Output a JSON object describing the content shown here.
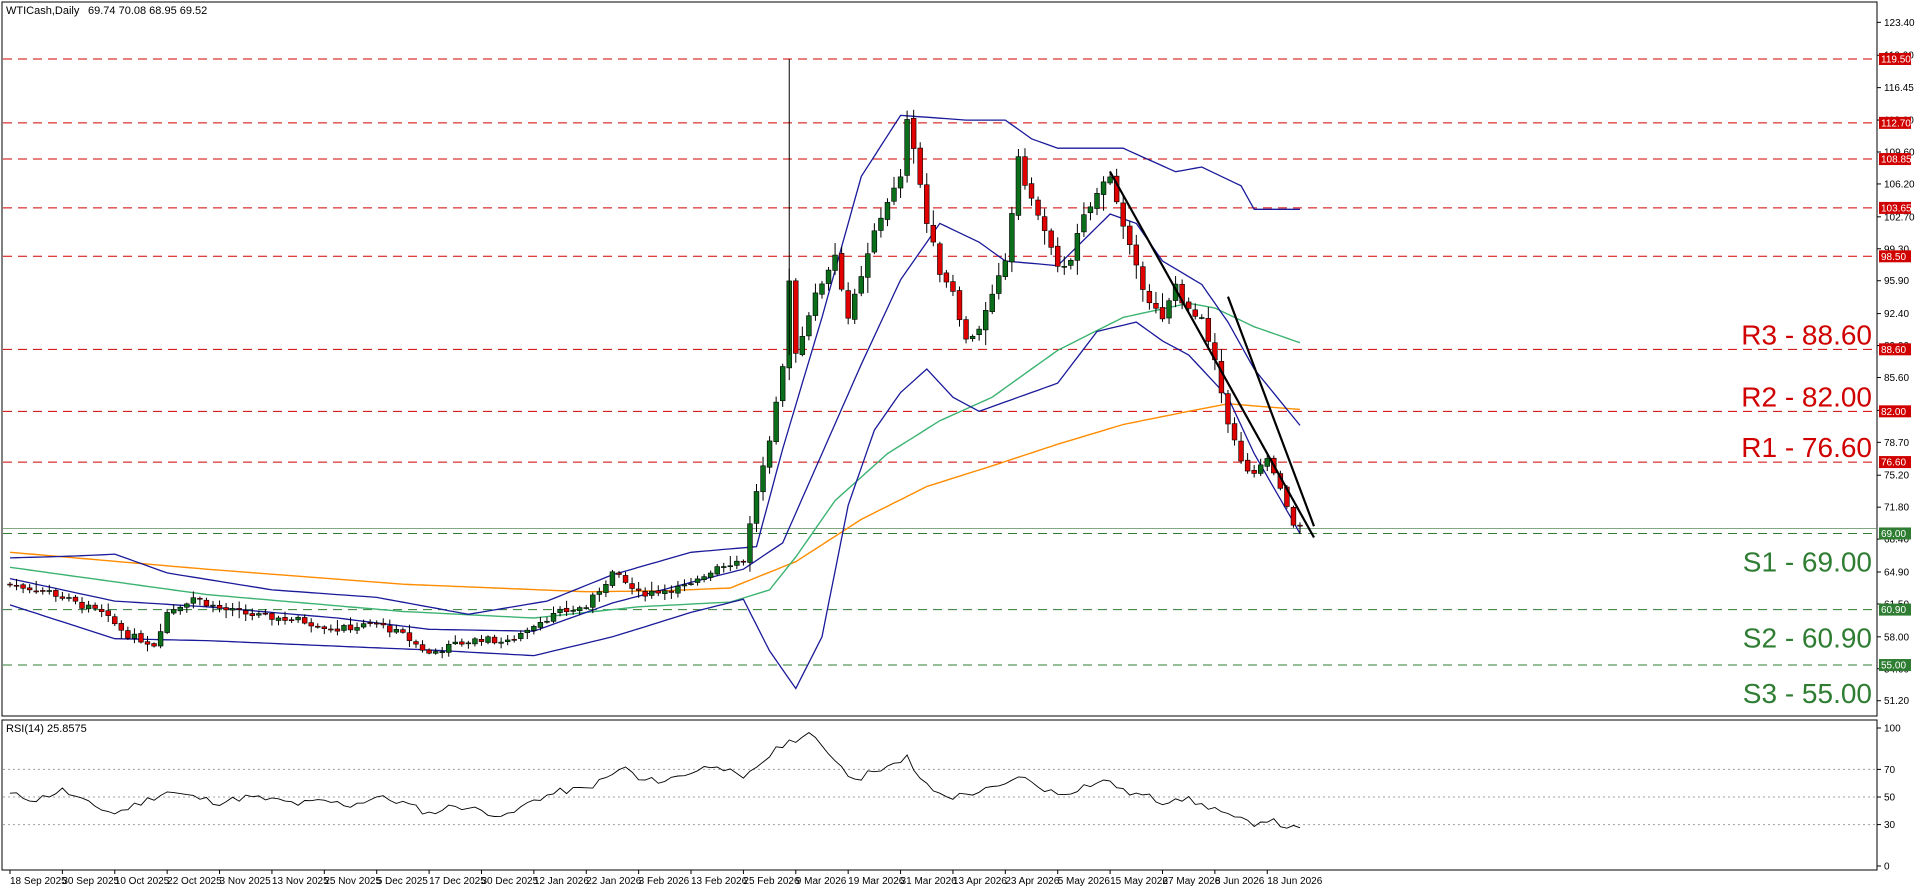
{
  "header": {
    "symbol_label": "WTICash,Daily",
    "ohlc_values": "69.74 70.08 68.95 69.52"
  },
  "rsi_header": {
    "label": "RSI(14) 25.8575"
  },
  "colors": {
    "bullish_candle": "#0b6e1a",
    "bearish_candle": "#e00000",
    "bollinger": "#1a1a9a",
    "ma_green": "#3cb371",
    "ma_orange": "#ff8c00",
    "resistance_line": "#d00000",
    "support_line": "#2e7d32",
    "trendline": "#000000",
    "rsi_line": "#000000"
  },
  "levels": {
    "resistance": [
      {
        "price": 119.5,
        "tag": "119.50"
      },
      {
        "price": 112.7,
        "tag": "112.70"
      },
      {
        "price": 108.85,
        "tag": "108.85"
      },
      {
        "price": 103.65,
        "tag": "103.65"
      },
      {
        "price": 98.5,
        "tag": "98.50"
      },
      {
        "price": 88.6,
        "tag": "88.60",
        "label": "R3 - 88.60"
      },
      {
        "price": 82.0,
        "tag": "82.00",
        "label": "R2 - 82.00"
      },
      {
        "price": 76.6,
        "tag": "76.60",
        "label": "R1 - 76.60"
      }
    ],
    "support": [
      {
        "price": 69.0,
        "tag": "69.00",
        "label": "S1 - 69.00"
      },
      {
        "price": 60.9,
        "tag": "60.90",
        "label": "S2 - 60.90"
      },
      {
        "price": 55.0,
        "tag": "55.00",
        "label": "S3 - 55.00"
      }
    ]
  },
  "chart_data": {
    "type": "candlestick",
    "price_axis": {
      "ylim": [
        50.0,
        124.5
      ],
      "ticks": [
        123.4,
        119.9,
        116.45,
        113.0,
        109.6,
        106.2,
        102.7,
        99.3,
        95.9,
        92.4,
        89.0,
        85.6,
        82.1,
        78.7,
        75.2,
        71.8,
        68.4,
        64.9,
        61.5,
        58.0,
        54.6,
        51.2
      ]
    },
    "rsi_axis": {
      "ylim": [
        0,
        100
      ],
      "ticks": [
        100,
        70,
        50,
        30,
        0
      ]
    },
    "x_ticks": [
      {
        "label": "18 Sep 2025",
        "i": 0
      },
      {
        "label": "30 Sep 2025",
        "i": 8
      },
      {
        "label": "10 Oct 2025",
        "i": 16
      },
      {
        "label": "22 Oct 2025",
        "i": 24
      },
      {
        "label": "3 Nov 2025",
        "i": 32
      },
      {
        "label": "13 Nov 2025",
        "i": 40
      },
      {
        "label": "25 Nov 2025",
        "i": 48
      },
      {
        "label": "5 Dec 2025",
        "i": 56
      },
      {
        "label": "17 Dec 2025",
        "i": 64
      },
      {
        "label": "30 Dec 2025",
        "i": 72
      },
      {
        "label": "12 Jan 2026",
        "i": 80
      },
      {
        "label": "22 Jan 2026",
        "i": 88
      },
      {
        "label": "3 Feb 2026",
        "i": 96
      },
      {
        "label": "13 Feb 2026",
        "i": 104
      },
      {
        "label": "25 Feb 2026",
        "i": 112
      },
      {
        "label": "9 Mar 2026",
        "i": 120
      },
      {
        "label": "19 Mar 2026",
        "i": 128
      },
      {
        "label": "31 Mar 2026",
        "i": 136
      },
      {
        "label": "13 Apr 2026",
        "i": 144
      },
      {
        "label": "23 Apr 2026",
        "i": 152
      },
      {
        "label": "5 May 2026",
        "i": 160
      },
      {
        "label": "15 May 2026",
        "i": 168
      },
      {
        "label": "27 May 2026",
        "i": 176
      },
      {
        "label": "8 Jun 2026",
        "i": 184
      },
      {
        "label": "18 Jun 2026",
        "i": 192
      }
    ],
    "bar_count": 200,
    "close_anchors": [
      [
        0,
        63.6
      ],
      [
        6,
        62.8
      ],
      [
        10,
        61.6
      ],
      [
        14,
        60.5
      ],
      [
        18,
        58.2
      ],
      [
        22,
        57.2
      ],
      [
        24,
        60.6
      ],
      [
        28,
        62.2
      ],
      [
        32,
        61.0
      ],
      [
        38,
        60.2
      ],
      [
        44,
        59.8
      ],
      [
        50,
        58.8
      ],
      [
        56,
        59.4
      ],
      [
        60,
        58.2
      ],
      [
        64,
        56.2
      ],
      [
        68,
        57.2
      ],
      [
        72,
        57.8
      ],
      [
        76,
        57.4
      ],
      [
        80,
        59.4
      ],
      [
        84,
        60.6
      ],
      [
        88,
        61.2
      ],
      [
        92,
        64.8
      ],
      [
        96,
        62.6
      ],
      [
        100,
        63.0
      ],
      [
        104,
        63.4
      ],
      [
        108,
        65.6
      ],
      [
        112,
        66.2
      ],
      [
        114,
        73.6
      ],
      [
        116,
        78.4
      ],
      [
        118,
        86.6
      ],
      [
        119,
        96.3
      ],
      [
        120,
        88.2
      ],
      [
        122,
        92.5
      ],
      [
        124,
        95.8
      ],
      [
        126,
        98.8
      ],
      [
        128,
        92.0
      ],
      [
        130,
        96.0
      ],
      [
        132,
        101.0
      ],
      [
        134,
        104.5
      ],
      [
        136,
        106.5
      ],
      [
        137,
        113.5
      ],
      [
        138,
        110.5
      ],
      [
        140,
        102.0
      ],
      [
        142,
        97.0
      ],
      [
        144,
        95.0
      ],
      [
        146,
        89.5
      ],
      [
        148,
        91.0
      ],
      [
        150,
        94.0
      ],
      [
        152,
        98.0
      ],
      [
        154,
        108.5
      ],
      [
        156,
        104.5
      ],
      [
        158,
        101.0
      ],
      [
        160,
        97.0
      ],
      [
        162,
        98.5
      ],
      [
        164,
        102.5
      ],
      [
        166,
        105.0
      ],
      [
        168,
        107.5
      ],
      [
        170,
        101.5
      ],
      [
        172,
        97.0
      ],
      [
        174,
        94.0
      ],
      [
        176,
        91.5
      ],
      [
        178,
        95.5
      ],
      [
        180,
        92.5
      ],
      [
        182,
        91.5
      ],
      [
        184,
        87.0
      ],
      [
        186,
        81.0
      ],
      [
        188,
        76.5
      ],
      [
        190,
        75.0
      ],
      [
        192,
        77.0
      ],
      [
        194,
        73.5
      ],
      [
        196,
        70.2
      ],
      [
        197,
        69.5
      ]
    ],
    "close_noise_amp": 0.0,
    "range_pct": 0.02,
    "ma_orange_anchors": [
      [
        0,
        67.0
      ],
      [
        30,
        65.2
      ],
      [
        60,
        63.6
      ],
      [
        88,
        62.8
      ],
      [
        100,
        62.9
      ],
      [
        110,
        63.2
      ],
      [
        120,
        66.0
      ],
      [
        130,
        70.5
      ],
      [
        140,
        74.0
      ],
      [
        150,
        76.2
      ],
      [
        160,
        78.5
      ],
      [
        170,
        80.6
      ],
      [
        180,
        82.0
      ],
      [
        186,
        82.8
      ],
      [
        197,
        82.2
      ]
    ],
    "ma_green_anchors": [
      [
        0,
        65.4
      ],
      [
        30,
        62.5
      ],
      [
        60,
        60.7
      ],
      [
        80,
        60.0
      ],
      [
        96,
        61.2
      ],
      [
        110,
        61.7
      ],
      [
        116,
        63.0
      ],
      [
        120,
        66.5
      ],
      [
        126,
        72.5
      ],
      [
        134,
        77.5
      ],
      [
        142,
        81.0
      ],
      [
        150,
        83.5
      ],
      [
        160,
        88.5
      ],
      [
        170,
        92.0
      ],
      [
        180,
        93.5
      ],
      [
        184,
        93.0
      ],
      [
        190,
        91.0
      ],
      [
        197,
        89.3
      ]
    ],
    "bb_upper_anchors": [
      [
        0,
        66.4
      ],
      [
        10,
        66.6
      ],
      [
        16,
        66.8
      ],
      [
        24,
        64.8
      ],
      [
        40,
        63.0
      ],
      [
        56,
        62.2
      ],
      [
        70,
        60.4
      ],
      [
        82,
        61.8
      ],
      [
        92,
        64.6
      ],
      [
        104,
        67.0
      ],
      [
        114,
        67.6
      ],
      [
        118,
        78.0
      ],
      [
        124,
        92.0
      ],
      [
        130,
        107.0
      ],
      [
        136,
        113.5
      ],
      [
        146,
        113.0
      ],
      [
        152,
        113.0
      ],
      [
        156,
        111.0
      ],
      [
        160,
        110.0
      ],
      [
        170,
        110.0
      ],
      [
        178,
        107.5
      ],
      [
        182,
        108.0
      ],
      [
        188,
        106.0
      ],
      [
        190,
        103.5
      ],
      [
        197,
        103.5
      ]
    ],
    "bb_middle_anchors": [
      [
        0,
        64.2
      ],
      [
        16,
        61.8
      ],
      [
        30,
        61.2
      ],
      [
        50,
        60.0
      ],
      [
        64,
        58.8
      ],
      [
        80,
        58.6
      ],
      [
        92,
        61.6
      ],
      [
        104,
        63.8
      ],
      [
        112,
        65.2
      ],
      [
        118,
        68.0
      ],
      [
        124,
        77.5
      ],
      [
        130,
        87.0
      ],
      [
        136,
        96.0
      ],
      [
        142,
        102.0
      ],
      [
        148,
        100.0
      ],
      [
        152,
        98.0
      ],
      [
        160,
        97.5
      ],
      [
        168,
        103.0
      ],
      [
        172,
        102.0
      ],
      [
        176,
        98.0
      ],
      [
        182,
        95.5
      ],
      [
        186,
        91.5
      ],
      [
        190,
        86.5
      ],
      [
        197,
        80.5
      ]
    ],
    "bb_lower_anchors": [
      [
        0,
        61.4
      ],
      [
        16,
        57.8
      ],
      [
        30,
        57.6
      ],
      [
        50,
        57.0
      ],
      [
        64,
        56.6
      ],
      [
        80,
        56.0
      ],
      [
        92,
        58.0
      ],
      [
        104,
        60.6
      ],
      [
        112,
        62.0
      ],
      [
        116,
        56.5
      ],
      [
        120,
        52.5
      ],
      [
        124,
        58.0
      ],
      [
        128,
        72.0
      ],
      [
        132,
        80.0
      ],
      [
        136,
        84.0
      ],
      [
        140,
        86.5
      ],
      [
        144,
        83.5
      ],
      [
        148,
        82.0
      ],
      [
        154,
        83.5
      ],
      [
        160,
        85.0
      ],
      [
        166,
        90.5
      ],
      [
        172,
        91.5
      ],
      [
        176,
        89.5
      ],
      [
        180,
        88.0
      ],
      [
        186,
        83.5
      ],
      [
        190,
        77.5
      ],
      [
        197,
        69.0
      ]
    ],
    "trendlines": [
      {
        "from": [
          168,
          107.5
        ],
        "to": [
          197,
          69.0
        ]
      },
      {
        "from": [
          186,
          94.2
        ],
        "to": [
          197,
          70.2
        ]
      }
    ],
    "rsi_anchors": [
      [
        0,
        52
      ],
      [
        4,
        48
      ],
      [
        8,
        55
      ],
      [
        12,
        45
      ],
      [
        16,
        38
      ],
      [
        20,
        46
      ],
      [
        24,
        54
      ],
      [
        28,
        50
      ],
      [
        32,
        46
      ],
      [
        36,
        50
      ],
      [
        40,
        48
      ],
      [
        44,
        45
      ],
      [
        48,
        47
      ],
      [
        52,
        44
      ],
      [
        56,
        50
      ],
      [
        60,
        46
      ],
      [
        64,
        38
      ],
      [
        68,
        44
      ],
      [
        72,
        40
      ],
      [
        76,
        36
      ],
      [
        80,
        48
      ],
      [
        84,
        54
      ],
      [
        88,
        56
      ],
      [
        92,
        66
      ],
      [
        94,
        72
      ],
      [
        96,
        62
      ],
      [
        100,
        62
      ],
      [
        104,
        68
      ],
      [
        108,
        74
      ],
      [
        112,
        62
      ],
      [
        114,
        72
      ],
      [
        116,
        80
      ],
      [
        118,
        88
      ],
      [
        120,
        92
      ],
      [
        122,
        96
      ],
      [
        124,
        86
      ],
      [
        126,
        78
      ],
      [
        128,
        66
      ],
      [
        130,
        64
      ],
      [
        132,
        70
      ],
      [
        134,
        72
      ],
      [
        136,
        74
      ],
      [
        137,
        79
      ],
      [
        138,
        70
      ],
      [
        140,
        58
      ],
      [
        142,
        52
      ],
      [
        144,
        50
      ],
      [
        146,
        52
      ],
      [
        148,
        54
      ],
      [
        150,
        56
      ],
      [
        152,
        58
      ],
      [
        154,
        66
      ],
      [
        156,
        60
      ],
      [
        158,
        56
      ],
      [
        160,
        52
      ],
      [
        162,
        54
      ],
      [
        164,
        58
      ],
      [
        166,
        60
      ],
      [
        168,
        62
      ],
      [
        170,
        54
      ],
      [
        172,
        52
      ],
      [
        174,
        50
      ],
      [
        176,
        46
      ],
      [
        178,
        50
      ],
      [
        180,
        48
      ],
      [
        182,
        44
      ],
      [
        184,
        42
      ],
      [
        186,
        36
      ],
      [
        188,
        33
      ],
      [
        190,
        31
      ],
      [
        192,
        34
      ],
      [
        194,
        30
      ],
      [
        197,
        26
      ]
    ]
  }
}
